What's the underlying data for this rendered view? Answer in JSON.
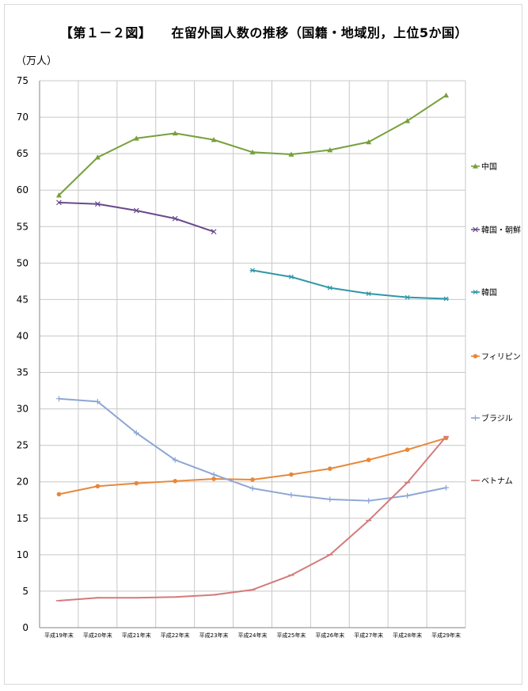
{
  "title": "【第１－２図】　　在留外国人数の推移（国籍・地域別，上位5か国）",
  "unit": "（万人）",
  "chart_data": {
    "type": "line",
    "categories": [
      "平成19年末",
      "平成20年末",
      "平成21年末",
      "平成22年末",
      "平成23年末",
      "平成24年末",
      "平成25年末",
      "平成26年末",
      "平成27年末",
      "平成28年末",
      "平成29年末"
    ],
    "ylim": [
      0,
      75
    ],
    "yticks": [
      0,
      5,
      10,
      15,
      20,
      25,
      30,
      35,
      40,
      45,
      50,
      55,
      60,
      65,
      70,
      75
    ],
    "grid": true,
    "legend_position": "right",
    "series": [
      {
        "name": "中国",
        "color": "#77a03c",
        "marker": "triangle",
        "values": [
          59.3,
          64.5,
          67.1,
          67.8,
          66.9,
          65.2,
          64.9,
          65.5,
          66.6,
          69.5,
          73.0
        ]
      },
      {
        "name": "韓国・朝鮮",
        "color": "#6a4a8c",
        "marker": "x",
        "values": [
          58.3,
          58.1,
          57.2,
          56.1,
          54.3,
          null,
          null,
          null,
          null,
          null,
          null
        ]
      },
      {
        "name": "韓国",
        "color": "#2f97a8",
        "marker": "star",
        "values": [
          null,
          null,
          null,
          null,
          null,
          49.0,
          48.1,
          46.6,
          45.8,
          45.3,
          45.1
        ]
      },
      {
        "name": "フィリピン",
        "color": "#e6883a",
        "marker": "circle",
        "values": [
          18.3,
          19.4,
          19.8,
          20.1,
          20.4,
          20.3,
          21.0,
          21.8,
          23.0,
          24.4,
          26.0
        ]
      },
      {
        "name": "ブラジル",
        "color": "#8ea6d4",
        "marker": "plus",
        "values": [
          31.4,
          31.0,
          26.7,
          23.0,
          21.0,
          19.1,
          18.2,
          17.6,
          17.4,
          18.1,
          19.2
        ]
      },
      {
        "name": "ベトナム",
        "color": "#d47a7a",
        "marker": "dash",
        "values": [
          3.7,
          4.1,
          4.1,
          4.2,
          4.5,
          5.2,
          7.2,
          10.0,
          14.7,
          19.9,
          26.2
        ]
      }
    ]
  }
}
